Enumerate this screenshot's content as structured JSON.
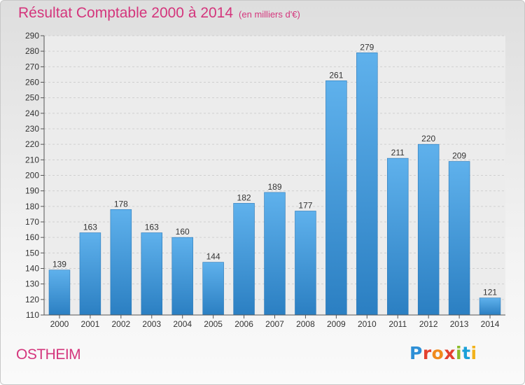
{
  "header": {
    "title": "Résultat Comptable 2000 à 2014",
    "subtitle": "(en milliers d'€)"
  },
  "footer": {
    "town": "OSTHEIM",
    "brand": [
      "P",
      "r",
      "o",
      "x",
      "i",
      "t",
      "i"
    ]
  },
  "colors": {
    "title": "#d4357c",
    "bar_top": "#5fb1ec",
    "bar_bottom": "#2b7fc2",
    "grid": "#cfcfcf"
  },
  "chart_data": {
    "type": "bar",
    "title": "Résultat Comptable 2000 à 2014",
    "xlabel": "",
    "ylabel": "",
    "categories": [
      "2000",
      "2001",
      "2002",
      "2003",
      "2004",
      "2005",
      "2006",
      "2007",
      "2008",
      "2009",
      "2010",
      "2011",
      "2012",
      "2013",
      "2014"
    ],
    "values": [
      139,
      163,
      178,
      163,
      160,
      144,
      182,
      189,
      177,
      261,
      279,
      211,
      220,
      209,
      121
    ],
    "ylim": [
      110,
      290
    ],
    "yticks": [
      110,
      120,
      130,
      140,
      150,
      160,
      170,
      180,
      190,
      200,
      210,
      220,
      230,
      240,
      250,
      260,
      270,
      280,
      290
    ],
    "grid": true,
    "data_labels": true
  }
}
